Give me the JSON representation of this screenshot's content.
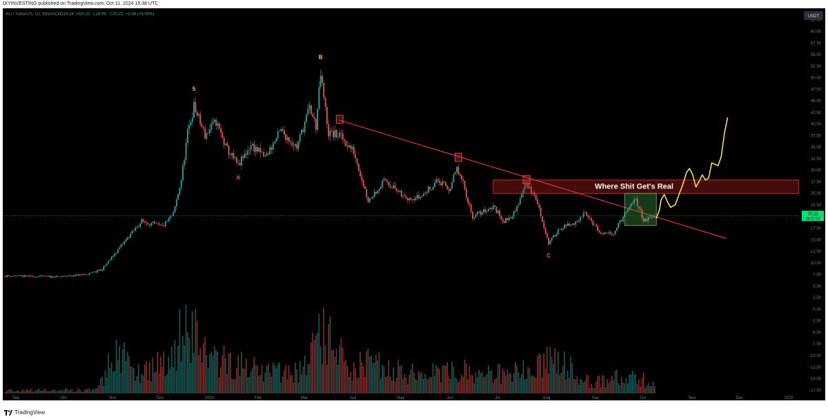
{
  "header": {
    "text": "DIYINVESTING published on TradingView.com, Oct 11, 2024 15:38 UTC"
  },
  "footer": {
    "brand": "TradingView"
  },
  "legend": {
    "symbol": "INJ / TetherUS, 1D, BINANCE",
    "o": "O19.24",
    "h": "H20.37",
    "l": "L19.09",
    "c": "C20.22",
    "chg": "+0.98 (+5.09%)"
  },
  "colors": {
    "bg": "#000000",
    "up": "#26a69a",
    "down": "#ef5350",
    "axis_text": "#787b86",
    "trendline": "#f23645",
    "zone": "#b71c1c",
    "forecast": "#f7e04b",
    "wave_labels": "#f7c948",
    "price_badge": "#00e676"
  },
  "chart_data": {
    "type": "candlestick",
    "currency_badge": "USDT",
    "y_ticks": [
      "62.50",
      "60.00",
      "57.50",
      "55.00",
      "52.50",
      "50.00",
      "47.50",
      "45.00",
      "42.50",
      "40.00",
      "37.50",
      "35.00",
      "32.50",
      "30.00",
      "27.50",
      "25.00",
      "22.50",
      "20.00",
      "17.50",
      "15.00",
      "12.50",
      "10.00",
      "7.50",
      "5.00",
      "2.50",
      "0.00",
      "-2.50",
      "-5.00",
      "-7.50",
      "-10.00",
      "-12.50",
      "-15.00",
      "-17.50"
    ],
    "ylim": [
      -18.2,
      63.8
    ],
    "x_ticks": [
      "Sep",
      "Oct",
      "Nov",
      "Dec",
      "2024",
      "Feb",
      "Mar",
      "Apr",
      "May",
      "Jun",
      "Jul",
      "Aug",
      "Sep",
      "Oct",
      "Nov",
      "Dec",
      "2025"
    ],
    "last_price": "20.22",
    "countdown": "08:21:18",
    "wave_labels": [
      {
        "text": "5",
        "date": "2023-12-25",
        "price": 47.2
      },
      {
        "text": "B",
        "date": "2024-03-14",
        "price": 54.0
      },
      {
        "text": "A",
        "date": "2024-01-22",
        "price": 28.0
      },
      {
        "text": "C",
        "date": "2024-08-05",
        "price": 11.2
      }
    ],
    "annotation": "Where Shit Get's Real",
    "resistance_zone": {
      "from": "2024-07-01",
      "to": "2025-01-10",
      "low": 25.0,
      "high": 27.9
    },
    "trendline": {
      "x1": "2024-03-26",
      "y1": 40.8,
      "x2": "2024-11-25",
      "y2": 15.3
    },
    "breakout_box": {
      "from": "2024-09-22",
      "to": "2024-10-12",
      "low": 18.1,
      "high": 25.0
    },
    "marker_boxes": [
      {
        "date": "2024-03-26",
        "price": 41.0
      },
      {
        "date": "2024-06-09",
        "price": 32.8
      },
      {
        "date": "2024-07-22",
        "price": 28.0
      }
    ],
    "forecast_path": [
      [
        "2024-10-12",
        19.6
      ],
      [
        "2024-10-14",
        21.5
      ],
      [
        "2024-10-15",
        23.6
      ],
      [
        "2024-10-17",
        24.8
      ],
      [
        "2024-10-19",
        23.2
      ],
      [
        "2024-10-21",
        22.0
      ],
      [
        "2024-10-24",
        22.6
      ],
      [
        "2024-10-26",
        24.5
      ],
      [
        "2024-10-29",
        27.2
      ],
      [
        "2024-10-31",
        29.5
      ],
      [
        "2024-11-02",
        30.4
      ],
      [
        "2024-11-04",
        29.0
      ],
      [
        "2024-11-06",
        26.4
      ],
      [
        "2024-11-08",
        27.6
      ],
      [
        "2024-11-10",
        29.0
      ],
      [
        "2024-11-12",
        27.9
      ],
      [
        "2024-11-14",
        28.3
      ],
      [
        "2024-11-16",
        31.6
      ],
      [
        "2024-11-18",
        31.3
      ],
      [
        "2024-11-20",
        31.0
      ],
      [
        "2024-11-22",
        33.0
      ],
      [
        "2024-11-24",
        38.0
      ],
      [
        "2024-11-26",
        41.4
      ]
    ],
    "price_anchors": [
      [
        "2023-08-28",
        7.2
      ],
      [
        "2023-10-01",
        7.0
      ],
      [
        "2023-10-20",
        7.6
      ],
      [
        "2023-10-28",
        8.6
      ],
      [
        "2023-11-05",
        12.0
      ],
      [
        "2023-11-15",
        16.2
      ],
      [
        "2023-11-22",
        19.0
      ],
      [
        "2023-12-05",
        17.8
      ],
      [
        "2023-12-12",
        20.5
      ],
      [
        "2023-12-17",
        28.0
      ],
      [
        "2023-12-21",
        38.0
      ],
      [
        "2023-12-25",
        43.8
      ],
      [
        "2024-01-01",
        37.5
      ],
      [
        "2024-01-08",
        40.5
      ],
      [
        "2024-01-14",
        35.0
      ],
      [
        "2024-01-22",
        31.0
      ],
      [
        "2024-01-30",
        35.5
      ],
      [
        "2024-02-08",
        32.8
      ],
      [
        "2024-02-18",
        38.5
      ],
      [
        "2024-02-28",
        35.0
      ],
      [
        "2024-03-07",
        43.5
      ],
      [
        "2024-03-11",
        39.5
      ],
      [
        "2024-03-14",
        50.5
      ],
      [
        "2024-03-19",
        38.0
      ],
      [
        "2024-03-26",
        37.5
      ],
      [
        "2024-04-04",
        34.0
      ],
      [
        "2024-04-13",
        23.5
      ],
      [
        "2024-04-24",
        28.0
      ],
      [
        "2024-05-05",
        24.2
      ],
      [
        "2024-05-16",
        24.2
      ],
      [
        "2024-05-27",
        27.8
      ],
      [
        "2024-06-03",
        25.8
      ],
      [
        "2024-06-08",
        30.2
      ],
      [
        "2024-06-12",
        27.0
      ],
      [
        "2024-06-18",
        20.0
      ],
      [
        "2024-07-01",
        22.2
      ],
      [
        "2024-07-08",
        18.9
      ],
      [
        "2024-07-15",
        21.0
      ],
      [
        "2024-07-21",
        27.3
      ],
      [
        "2024-07-28",
        24.0
      ],
      [
        "2024-08-05",
        14.2
      ],
      [
        "2024-08-12",
        17.5
      ],
      [
        "2024-08-24",
        18.8
      ],
      [
        "2024-08-28",
        21.3
      ],
      [
        "2024-09-07",
        16.0
      ],
      [
        "2024-09-15",
        16.5
      ],
      [
        "2024-09-22",
        20.5
      ],
      [
        "2024-09-29",
        23.8
      ],
      [
        "2024-10-04",
        19.2
      ],
      [
        "2024-10-11",
        20.2
      ]
    ],
    "volume_anchors": [
      [
        "2023-08-28",
        0.04
      ],
      [
        "2023-10-25",
        0.05
      ],
      [
        "2023-11-05",
        0.55
      ],
      [
        "2023-11-20",
        0.3
      ],
      [
        "2023-12-10",
        0.45
      ],
      [
        "2023-12-20",
        1.0
      ],
      [
        "2024-01-05",
        0.45
      ],
      [
        "2024-02-10",
        0.3
      ],
      [
        "2024-03-01",
        0.3
      ],
      [
        "2024-03-15",
        0.8
      ],
      [
        "2024-04-01",
        0.35
      ],
      [
        "2024-04-15",
        0.4
      ],
      [
        "2024-05-15",
        0.25
      ],
      [
        "2024-06-10",
        0.3
      ],
      [
        "2024-07-01",
        0.25
      ],
      [
        "2024-07-25",
        0.3
      ],
      [
        "2024-08-05",
        0.55
      ],
      [
        "2024-09-01",
        0.15
      ],
      [
        "2024-09-28",
        0.25
      ],
      [
        "2024-10-11",
        0.1
      ]
    ]
  }
}
